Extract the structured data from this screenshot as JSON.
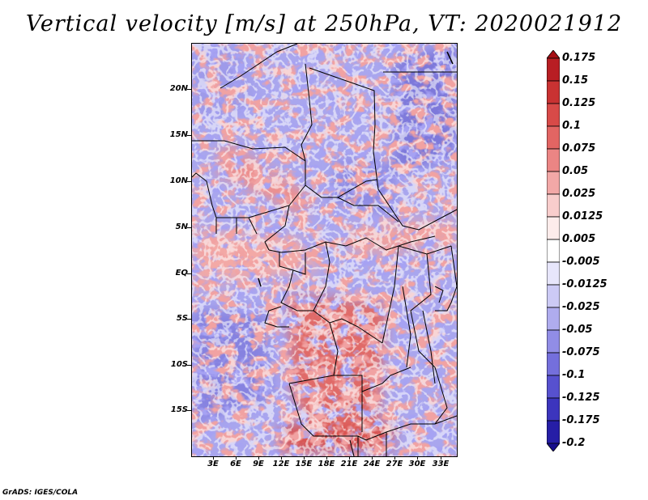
{
  "title": "Vertical velocity [m/s] at 250hPa, VT: 2020021912",
  "credit": "GrADS: IGES/COLA",
  "map": {
    "variable": "Vertical velocity",
    "units": "m/s",
    "level": "250hPa",
    "valid_time": "2020021912",
    "lon_range": [
      0,
      35
    ],
    "lat_range": [
      -20,
      25
    ],
    "y_ticks": [
      "20N",
      "15N",
      "10N",
      "5N",
      "EQ",
      "5S",
      "10S",
      "15S"
    ],
    "x_ticks": [
      "3E",
      "6E",
      "9E",
      "12E",
      "15E",
      "18E",
      "21E",
      "24E",
      "27E",
      "30E",
      "33E"
    ]
  },
  "colorbar": {
    "labels": [
      "0.175",
      "0.15",
      "0.125",
      "0.1",
      "0.075",
      "0.05",
      "0.025",
      "0.0125",
      "0.005",
      "-0.005",
      "-0.0125",
      "-0.025",
      "-0.05",
      "-0.075",
      "-0.1",
      "-0.125",
      "-0.175",
      "-0.2"
    ],
    "colors": [
      "#a50f15",
      "#b81e23",
      "#c93232",
      "#d84a48",
      "#e26563",
      "#eb8584",
      "#f2a8a7",
      "#f8cdcc",
      "#fdeceb",
      "#ffffff",
      "#e7e6fb",
      "#cccaf5",
      "#afacee",
      "#918de6",
      "#746fdc",
      "#5751cf",
      "#3c35bd",
      "#261ea6",
      "#170e8c"
    ]
  }
}
